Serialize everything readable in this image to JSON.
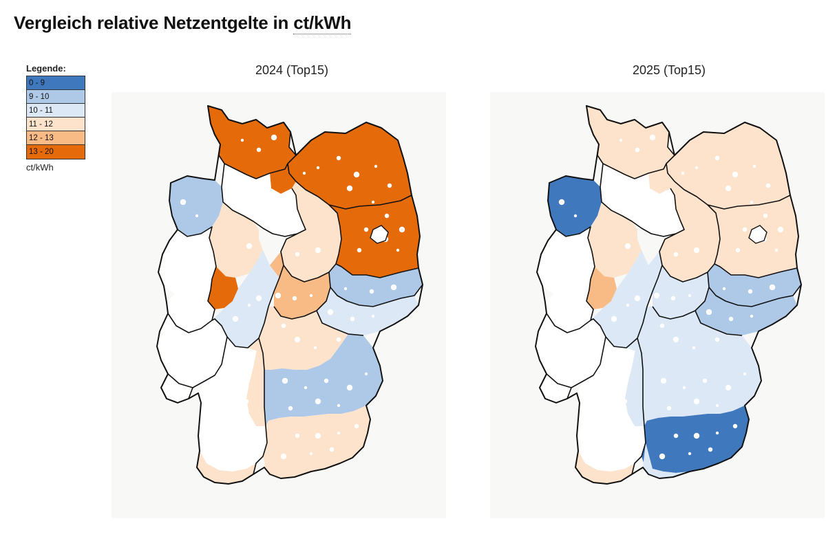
{
  "title_main": "Vergleich relative Netzentgelte in ",
  "title_unit": "ct/kWh",
  "legend": {
    "title": "Legende:",
    "unit": "ct/kWh",
    "items": [
      {
        "label": "0 - 9",
        "color": "#3f78bd"
      },
      {
        "label": "9 - 10",
        "color": "#aec9e8"
      },
      {
        "label": "10 - 11",
        "color": "#dce8f6"
      },
      {
        "label": "11 - 12",
        "color": "#fde3cb"
      },
      {
        "label": "12 - 13",
        "color": "#f8bb85"
      },
      {
        "label": "13 - 20",
        "color": "#e56a0a"
      }
    ]
  },
  "maps": [
    {
      "title": "2024 (Top15)",
      "regions": {
        "sh": 5,
        "mv": 5,
        "hh": 5,
        "ni_nw": 1,
        "ni_sw": 3,
        "ni_e": 9,
        "st": 3,
        "bb": 5,
        "nrw_n": 9,
        "nrw_c": 5,
        "nrw_s": 9,
        "he": 2,
        "th": 4,
        "sn_n": 1,
        "sn_s": 2,
        "rp": 9,
        "sl": 9,
        "bw": 9,
        "bw_e": 3,
        "by_n": 3,
        "by_c": 1,
        "by_s": 3,
        "by_sw": 3,
        "bw_sw": 3
      }
    },
    {
      "title": "2025 (Top15)",
      "regions": {
        "sh": 3,
        "mv": 3,
        "hh": 3,
        "ni_nw": 0,
        "ni_sw": 3,
        "ni_e": 9,
        "st": 3,
        "bb": 3,
        "nrw_n": 9,
        "nrw_c": 4,
        "nrw_s": 9,
        "he": 2,
        "th": 2,
        "sn_n": 1,
        "sn_s": 1,
        "rp": 9,
        "sl": 9,
        "bw": 9,
        "bw_e": 2,
        "by_n": 2,
        "by_c": 2,
        "by_s": 0,
        "by_sw": 2,
        "bw_sw": 3
      }
    }
  ]
}
